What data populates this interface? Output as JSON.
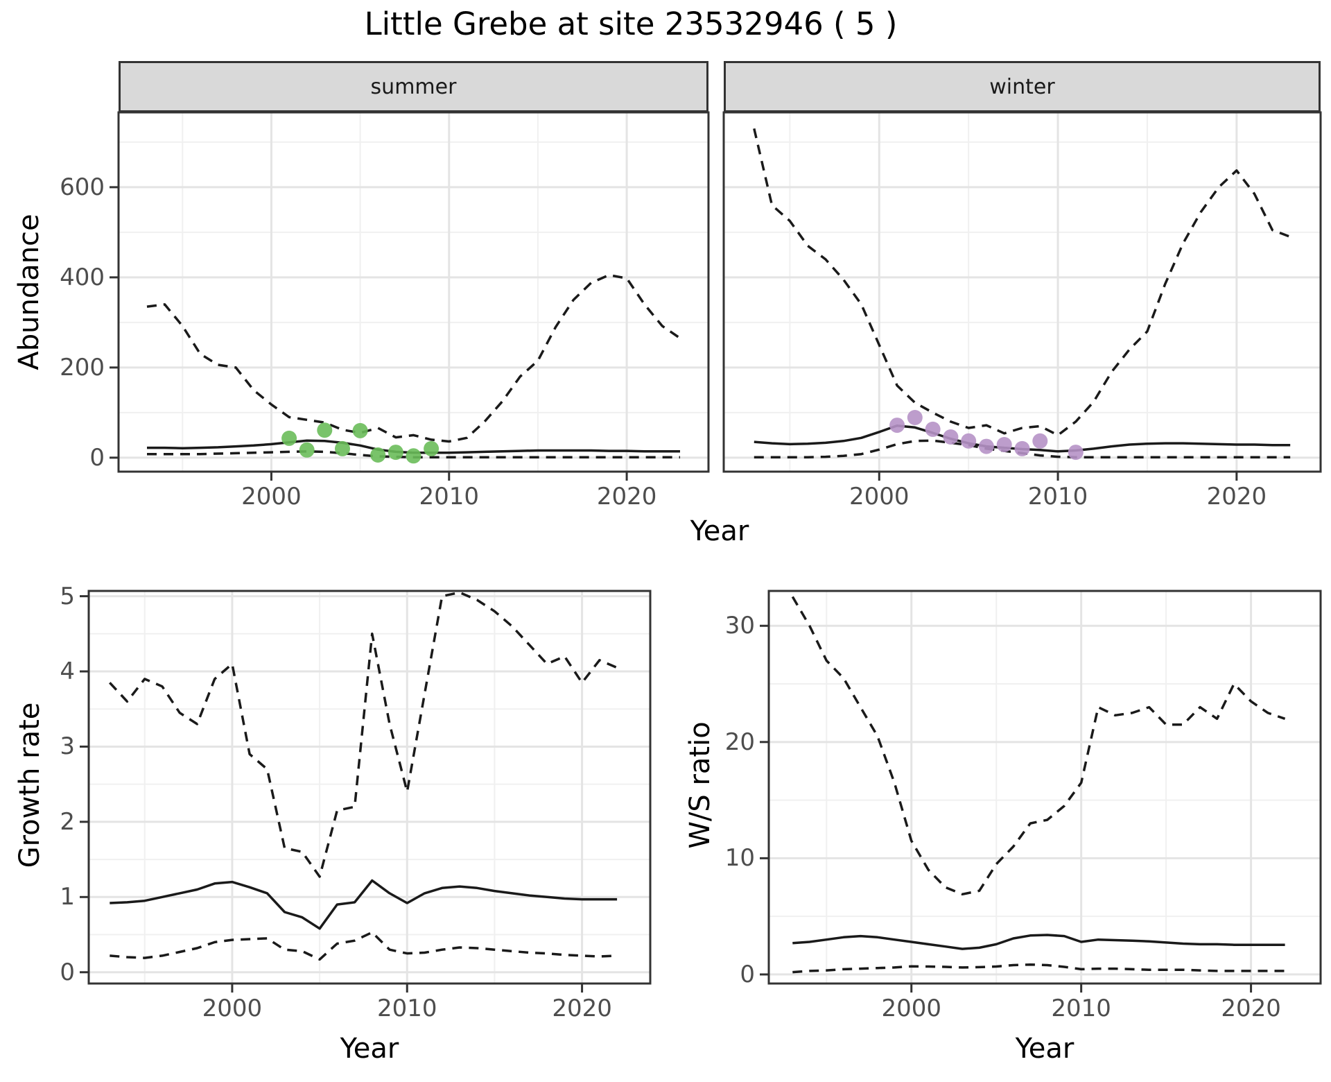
{
  "title": "Little Grebe at site 23532946 ( 5 )",
  "axes": {
    "abundance": "Abundance",
    "growth_rate": "Growth rate",
    "ws_ratio": "W/S ratio",
    "year": "Year"
  },
  "colors": {
    "line": "#1a1a1a",
    "observed_summer": "#6abd5a",
    "observed_winter": "#b692c6",
    "strip_fill": "#d9d9d9",
    "panel_border": "#333333",
    "grid_major": "#e4e4e4",
    "grid_minor": "#f0f0f0",
    "tick_text": "#4d4d4d"
  },
  "chart_data": [
    {
      "panel": "abundance_summer",
      "type": "line",
      "facet_label": "summer",
      "ylabel": "Abundance",
      "xlabel": "Year",
      "grid": true,
      "legend": "none",
      "x_domain": [
        1991.4,
        2024.6
      ],
      "y_domain": [
        -31,
        766
      ],
      "x_major": [
        2000,
        2010,
        2020
      ],
      "x_minor": [
        1995,
        2005,
        2015
      ],
      "y_major": [
        0,
        200,
        400,
        600
      ],
      "y_minor": [
        100,
        300,
        500,
        700
      ],
      "show_y_labels": true,
      "years": [
        1993,
        1994,
        1995,
        1996,
        1997,
        1998,
        1999,
        2000,
        2001,
        2002,
        2003,
        2004,
        2005,
        2006,
        2007,
        2008,
        2009,
        2010,
        2011,
        2012,
        2013,
        2014,
        2015,
        2016,
        2017,
        2018,
        2019,
        2020,
        2021,
        2022,
        2023
      ],
      "series": [
        {
          "name": "upper_ci",
          "style": "dashed",
          "values": [
            335,
            340,
            292,
            230,
            206,
            200,
            150,
            118,
            90,
            84,
            78,
            62,
            55,
            66,
            45,
            50,
            40,
            36,
            44,
            80,
            125,
            180,
            215,
            290,
            350,
            388,
            405,
            398,
            340,
            292,
            265
          ]
        },
        {
          "name": "median",
          "style": "solid",
          "values": [
            22,
            22,
            21,
            22,
            23,
            25,
            27,
            30,
            34,
            38,
            37,
            33,
            27,
            18,
            13,
            11,
            11,
            11,
            12,
            13,
            14,
            15,
            16,
            16,
            16,
            16,
            15,
            15,
            14,
            14,
            14
          ]
        },
        {
          "name": "lower_ci",
          "style": "dashed",
          "values": [
            8,
            8,
            8,
            8,
            9,
            10,
            11,
            12,
            13,
            14,
            13,
            10,
            6,
            3,
            2,
            1,
            1,
            1,
            1,
            1,
            1,
            1,
            1,
            1,
            1,
            1,
            1,
            1,
            1,
            1,
            1
          ]
        }
      ],
      "points": {
        "name": "observed-counts-summer",
        "color_key": "observed_summer",
        "years": [
          2001,
          2002,
          2003,
          2004,
          2005,
          2006,
          2007,
          2008,
          2009
        ],
        "values": [
          43,
          17,
          61,
          20,
          60,
          6,
          12,
          4,
          20
        ]
      }
    },
    {
      "panel": "abundance_winter",
      "type": "line",
      "facet_label": "winter",
      "ylabel": "Abundance",
      "xlabel": "Year",
      "grid": true,
      "legend": "none",
      "x_domain": [
        1991.3,
        2024.7
      ],
      "y_domain": [
        -31,
        766
      ],
      "x_major": [
        2000,
        2010,
        2020
      ],
      "x_minor": [
        1995,
        2005,
        2015
      ],
      "y_major": [
        0,
        200,
        400,
        600
      ],
      "y_minor": [
        100,
        300,
        500,
        700
      ],
      "show_y_labels": false,
      "years": [
        1993,
        1994,
        1995,
        1996,
        1997,
        1998,
        1999,
        2000,
        2001,
        2002,
        2003,
        2004,
        2005,
        2006,
        2007,
        2008,
        2009,
        2010,
        2011,
        2012,
        2013,
        2014,
        2015,
        2016,
        2017,
        2018,
        2019,
        2020,
        2021,
        2022,
        2023
      ],
      "series": [
        {
          "name": "upper_ci",
          "style": "dashed",
          "values": [
            730,
            560,
            525,
            470,
            440,
            395,
            340,
            250,
            160,
            122,
            100,
            80,
            66,
            72,
            54,
            66,
            70,
            50,
            80,
            124,
            190,
            240,
            280,
            385,
            475,
            545,
            600,
            637,
            585,
            505,
            490
          ]
        },
        {
          "name": "median",
          "style": "solid",
          "values": [
            35,
            32,
            30,
            31,
            33,
            37,
            44,
            57,
            71,
            67,
            55,
            42,
            32,
            25,
            22,
            19,
            17,
            14,
            16,
            20,
            25,
            29,
            31,
            32,
            32,
            31,
            30,
            29,
            29,
            28,
            28
          ]
        },
        {
          "name": "lower_ci",
          "style": "dashed",
          "values": [
            1,
            1,
            1,
            1,
            2,
            4,
            8,
            18,
            30,
            37,
            38,
            33,
            28,
            20,
            15,
            10,
            5,
            2,
            1,
            1,
            1,
            1,
            1,
            1,
            1,
            1,
            1,
            1,
            1,
            1,
            1
          ]
        }
      ],
      "points": {
        "name": "observed-counts-winter",
        "color_key": "observed_winter",
        "years": [
          2001,
          2002,
          2003,
          2004,
          2005,
          2006,
          2007,
          2008,
          2009,
          2011
        ],
        "values": [
          72,
          89,
          63,
          46,
          37,
          25,
          29,
          20,
          37,
          12
        ]
      }
    },
    {
      "panel": "growth_rate",
      "type": "line",
      "facet_label": "",
      "ylabel": "Growth rate",
      "xlabel": "Year",
      "grid": true,
      "legend": "none",
      "x_domain": [
        1991.8,
        2023.9
      ],
      "y_domain": [
        -0.15,
        5.07
      ],
      "x_major": [
        2000,
        2010,
        2020
      ],
      "x_minor": [
        1995,
        2005,
        2015
      ],
      "y_major": [
        0,
        1,
        2,
        3,
        4,
        5
      ],
      "y_minor": [
        0.5,
        1.5,
        2.5,
        3.5,
        4.5
      ],
      "show_y_labels": true,
      "years": [
        1993,
        1994,
        1995,
        1996,
        1997,
        1998,
        1999,
        2000,
        2001,
        2002,
        2003,
        2004,
        2005,
        2006,
        2007,
        2008,
        2009,
        2010,
        2011,
        2012,
        2013,
        2014,
        2015,
        2016,
        2017,
        2018,
        2019,
        2020,
        2021,
        2022
      ],
      "series": [
        {
          "name": "upper_ci",
          "style": "dashed",
          "values": [
            3.85,
            3.6,
            3.9,
            3.8,
            3.45,
            3.3,
            3.9,
            4.1,
            2.9,
            2.7,
            1.65,
            1.6,
            1.27,
            2.15,
            2.2,
            4.5,
            3.3,
            2.4,
            3.7,
            5.0,
            5.05,
            4.95,
            4.8,
            4.6,
            4.35,
            4.1,
            4.2,
            3.85,
            4.15,
            4.05
          ]
        },
        {
          "name": "median",
          "style": "solid",
          "values": [
            0.92,
            0.93,
            0.95,
            1.0,
            1.05,
            1.1,
            1.18,
            1.2,
            1.13,
            1.05,
            0.8,
            0.73,
            0.58,
            0.9,
            0.93,
            1.22,
            1.05,
            0.92,
            1.05,
            1.12,
            1.14,
            1.12,
            1.08,
            1.05,
            1.02,
            1.0,
            0.98,
            0.97,
            0.97,
            0.97
          ]
        },
        {
          "name": "lower_ci",
          "style": "dashed",
          "values": [
            0.22,
            0.2,
            0.19,
            0.22,
            0.27,
            0.32,
            0.4,
            0.43,
            0.44,
            0.45,
            0.3,
            0.28,
            0.17,
            0.38,
            0.42,
            0.53,
            0.3,
            0.25,
            0.26,
            0.3,
            0.33,
            0.32,
            0.3,
            0.28,
            0.26,
            0.25,
            0.23,
            0.22,
            0.21,
            0.22
          ]
        }
      ],
      "points": null
    },
    {
      "panel": "ws_ratio",
      "type": "line",
      "facet_label": "",
      "ylabel": "W/S ratio",
      "xlabel": "Year",
      "grid": true,
      "legend": "none",
      "x_domain": [
        1991.6,
        2024.1
      ],
      "y_domain": [
        -0.78,
        33.0
      ],
      "x_major": [
        2000,
        2010,
        2020
      ],
      "x_minor": [
        1995,
        2005,
        2015
      ],
      "y_major": [
        0,
        10,
        20,
        30
      ],
      "y_minor": [
        5,
        15,
        25
      ],
      "show_y_labels": true,
      "years": [
        1993,
        1994,
        1995,
        1996,
        1997,
        1998,
        1999,
        2000,
        2001,
        2002,
        2003,
        2004,
        2005,
        2006,
        2007,
        2008,
        2009,
        2010,
        2011,
        2012,
        2013,
        2014,
        2015,
        2016,
        2017,
        2018,
        2019,
        2020,
        2021,
        2022
      ],
      "series": [
        {
          "name": "upper_ci",
          "style": "dashed",
          "values": [
            32.5,
            30,
            27,
            25.5,
            23,
            20.5,
            16.5,
            11.5,
            9,
            7.5,
            6.9,
            7.2,
            9.5,
            11,
            13,
            13.3,
            14.5,
            16.5,
            23,
            22.3,
            22.5,
            23,
            21.5,
            21.5,
            23,
            22,
            25,
            23.5,
            22.5,
            22
          ]
        },
        {
          "name": "median",
          "style": "solid",
          "values": [
            2.7,
            2.8,
            3.0,
            3.2,
            3.3,
            3.2,
            3.0,
            2.8,
            2.6,
            2.4,
            2.2,
            2.3,
            2.6,
            3.1,
            3.35,
            3.4,
            3.3,
            2.8,
            3.0,
            2.95,
            2.9,
            2.85,
            2.75,
            2.65,
            2.6,
            2.6,
            2.55,
            2.55,
            2.55,
            2.55
          ]
        },
        {
          "name": "lower_ci",
          "style": "dashed",
          "values": [
            0.2,
            0.3,
            0.35,
            0.45,
            0.5,
            0.55,
            0.6,
            0.7,
            0.68,
            0.65,
            0.6,
            0.63,
            0.68,
            0.8,
            0.85,
            0.8,
            0.65,
            0.45,
            0.5,
            0.5,
            0.45,
            0.4,
            0.4,
            0.4,
            0.35,
            0.3,
            0.3,
            0.3,
            0.3,
            0.3
          ]
        }
      ],
      "points": null
    }
  ]
}
